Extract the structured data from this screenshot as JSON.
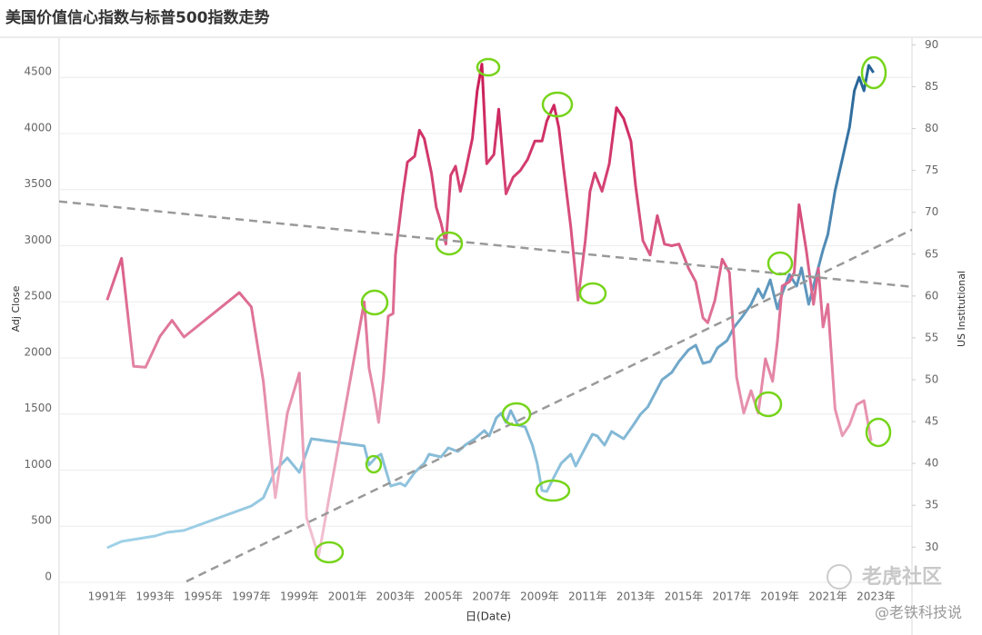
{
  "chart_data": {
    "type": "line",
    "title": "美国价值信心指数与标普500指数走势",
    "xlabel": "日(Date)",
    "ylabel": "Adj Close",
    "y2label": "US Institutional",
    "xlim": [
      1989,
      2024.5
    ],
    "xticks": [
      {
        "value": 1991,
        "label": "1991年"
      },
      {
        "value": 1993,
        "label": "1993年"
      },
      {
        "value": 1995,
        "label": "1995年"
      },
      {
        "value": 1997,
        "label": "1997年"
      },
      {
        "value": 1999,
        "label": "1999年"
      },
      {
        "value": 2001,
        "label": "2001年"
      },
      {
        "value": 2003,
        "label": "2003年"
      },
      {
        "value": 2005,
        "label": "2005年"
      },
      {
        "value": 2007,
        "label": "2007年"
      },
      {
        "value": 2009,
        "label": "2009年"
      },
      {
        "value": 2011,
        "label": "2011年"
      },
      {
        "value": 2013,
        "label": "2013年"
      },
      {
        "value": 2015,
        "label": "2015年"
      },
      {
        "value": 2017,
        "label": "2017年"
      },
      {
        "value": 2019,
        "label": "2019年"
      },
      {
        "value": 2021,
        "label": "2021年"
      },
      {
        "value": 2023,
        "label": "2023年"
      }
    ],
    "ylim": [
      0,
      4850
    ],
    "yticks": [
      0,
      500,
      1000,
      1500,
      2000,
      2500,
      3000,
      3500,
      4000,
      4500
    ],
    "y2lim": [
      25.8,
      90.8
    ],
    "y2ticks": [
      30,
      35,
      40,
      45,
      50,
      55,
      60,
      65,
      70,
      75,
      80,
      85,
      90
    ],
    "grid": true,
    "series": [
      {
        "axis": "y",
        "color": [
          "#aadbef",
          "#1c5c92"
        ],
        "x": [
          1991.0,
          1991.6,
          1993.0,
          1993.5,
          1994.2,
          1997.0,
          1997.5,
          1998.0,
          1998.5,
          1999.0,
          1999.5,
          2001.7,
          2001.9,
          2002.2,
          2002.4,
          2002.8,
          2003.2,
          2003.4,
          2003.8,
          2004.2,
          2004.4,
          2004.9,
          2005.2,
          2005.6,
          2005.9,
          2006.3,
          2006.7,
          2006.9,
          2007.2,
          2007.4,
          2007.6,
          2007.8,
          2008.1,
          2008.4,
          2008.7,
          2008.9,
          2009.1,
          2009.3,
          2009.6,
          2009.9,
          2010.3,
          2010.5,
          2010.8,
          2011.2,
          2011.4,
          2011.7,
          2012.0,
          2012.5,
          2012.9,
          2013.2,
          2013.5,
          2013.8,
          2014.1,
          2014.5,
          2014.8,
          2015.2,
          2015.5,
          2015.8,
          2016.1,
          2016.4,
          2016.8,
          2017.1,
          2017.4,
          2017.8,
          2018.1,
          2018.3,
          2018.6,
          2018.9,
          2019.1,
          2019.4,
          2019.7,
          2019.9,
          2020.2,
          2020.5,
          2020.8,
          2021.0,
          2021.3,
          2021.6,
          2021.9,
          2022.1,
          2022.3,
          2022.5,
          2022.7,
          2022.9
        ],
        "values": [
          308,
          364,
          413,
          445,
          462,
          680,
          753,
          996,
          1109,
          980,
          1279,
          1215,
          1045,
          1117,
          1142,
          858,
          883,
          858,
          980,
          1061,
          1142,
          1117,
          1198,
          1166,
          1223,
          1279,
          1352,
          1304,
          1466,
          1506,
          1425,
          1530,
          1401,
          1385,
          1223,
          1061,
          818,
          810,
          939,
          1061,
          1142,
          1036,
          1158,
          1320,
          1304,
          1223,
          1344,
          1279,
          1401,
          1498,
          1563,
          1684,
          1806,
          1870,
          1968,
          2073,
          2113,
          1951,
          1968,
          2089,
          2154,
          2275,
          2356,
          2478,
          2615,
          2534,
          2696,
          2437,
          2575,
          2745,
          2640,
          2802,
          2478,
          2721,
          2964,
          3101,
          3490,
          3773,
          4057,
          4381,
          4502,
          4381,
          4607,
          4543
        ]
      },
      {
        "axis": "y2",
        "color": [
          "#f5d0dc",
          "#c80f4d"
        ],
        "x": [
          1991.0,
          1991.6,
          1992.1,
          1992.6,
          1993.2,
          1993.7,
          1994.2,
          1996.5,
          1997.0,
          1997.5,
          1998.0,
          1998.5,
          1999.0,
          1999.3,
          1999.8,
          2001.7,
          2001.9,
          2002.1,
          2002.3,
          2002.5,
          2002.7,
          2002.9,
          2003.0,
          2003.3,
          2003.5,
          2003.8,
          2004.0,
          2004.2,
          2004.5,
          2004.7,
          2004.9,
          2005.1,
          2005.3,
          2005.5,
          2005.7,
          2005.9,
          2006.2,
          2006.4,
          2006.6,
          2006.8,
          2007.1,
          2007.3,
          2007.6,
          2007.9,
          2008.2,
          2008.5,
          2008.8,
          2009.1,
          2009.3,
          2009.6,
          2009.8,
          2010.0,
          2010.3,
          2010.6,
          2010.9,
          2011.1,
          2011.3,
          2011.6,
          2011.9,
          2012.2,
          2012.5,
          2012.8,
          2013.0,
          2013.3,
          2013.6,
          2013.9,
          2014.2,
          2014.5,
          2014.8,
          2015.2,
          2015.5,
          2015.8,
          2016.0,
          2016.3,
          2016.6,
          2016.9,
          2017.2,
          2017.5,
          2017.8,
          2018.1,
          2018.4,
          2018.7,
          2018.9,
          2019.1,
          2019.4,
          2019.6,
          2019.8,
          2020.1,
          2020.4,
          2020.6,
          2020.8,
          2021.0,
          2021.3,
          2021.6,
          2021.9,
          2022.2,
          2022.5,
          2022.8
        ],
        "values": [
          59.5,
          64.5,
          51.6,
          51.5,
          55.2,
          57.1,
          55.1,
          60.4,
          58.7,
          49.8,
          35.9,
          46.0,
          50.8,
          33.5,
          28.9,
          59.3,
          51.4,
          48.5,
          44.9,
          50.3,
          57.6,
          57.9,
          64.9,
          72.0,
          76.0,
          76.7,
          79.8,
          78.8,
          74.7,
          70.6,
          68.7,
          66.2,
          74.4,
          75.5,
          72.5,
          74.7,
          78.8,
          84.5,
          87.7,
          75.8,
          76.9,
          82.3,
          72.2,
          74.2,
          75.0,
          76.3,
          78.5,
          78.5,
          80.9,
          82.8,
          80.1,
          75.2,
          68.2,
          59.5,
          66.6,
          72.5,
          74.7,
          72.5,
          75.8,
          82.5,
          81.2,
          78.5,
          73.1,
          66.6,
          64.9,
          69.6,
          66.2,
          66.0,
          66.2,
          63.3,
          61.7,
          57.4,
          56.8,
          59.5,
          64.4,
          62.8,
          50.3,
          46.0,
          48.7,
          46.0,
          52.5,
          49.8,
          54.6,
          61.2,
          61.7,
          62.8,
          70.9,
          65.5,
          59.0,
          63.3,
          56.3,
          59.0,
          46.5,
          43.3,
          44.6,
          47.0,
          47.5,
          42.7
        ]
      }
    ],
    "trend_lines": [
      {
        "axis": "y",
        "color": "#999999",
        "x": [
          1994.3,
          2024.5
        ],
        "values": [
          8,
          3142
        ]
      },
      {
        "axis": "y2",
        "color": "#999999",
        "x": [
          1989,
          2024.5
        ],
        "values": [
          71.3,
          61.1
        ]
      }
    ]
  },
  "watermark": {
    "brand": "老虎社区",
    "author": "@老铁科技说"
  }
}
